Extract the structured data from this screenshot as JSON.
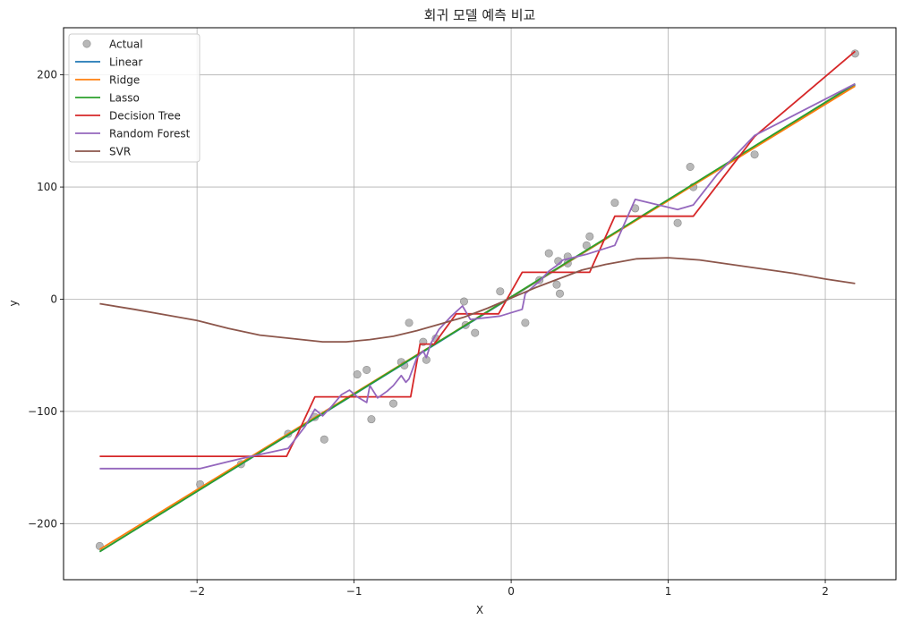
{
  "chart_data": {
    "type": "line",
    "title": "회귀 모델 예측 비교",
    "xlabel": "X",
    "ylabel": "y",
    "xlim": [
      -2.85,
      2.45
    ],
    "ylim": [
      -250,
      242
    ],
    "x_ticks": [
      -2,
      -1,
      0,
      1,
      2
    ],
    "x_tick_labels": [
      "−2",
      "−1",
      "0",
      "1",
      "2"
    ],
    "y_ticks": [
      -200,
      -100,
      0,
      100,
      200
    ],
    "y_tick_labels": [
      "−200",
      "−100",
      "0",
      "100",
      "200"
    ],
    "grid": true,
    "legend_position": "top-left",
    "colors": {
      "actual": "#a0a0a0",
      "linear": "#1f77b4",
      "ridge": "#ff7f0e",
      "lasso": "#2ca02c",
      "decision_tree": "#d62728",
      "random_forest": "#9467bd",
      "svr": "#8c564b"
    },
    "scatter": {
      "name": "Actual",
      "points": [
        [
          -2.62,
          -220
        ],
        [
          -1.98,
          -165
        ],
        [
          -1.72,
          -147
        ],
        [
          -1.42,
          -120
        ],
        [
          -1.25,
          -105
        ],
        [
          -1.19,
          -125
        ],
        [
          -0.98,
          -67
        ],
        [
          -0.92,
          -63
        ],
        [
          -0.89,
          -107
        ],
        [
          -0.75,
          -93
        ],
        [
          -0.7,
          -56
        ],
        [
          -0.68,
          -59
        ],
        [
          -0.65,
          -21
        ],
        [
          -0.56,
          -38
        ],
        [
          -0.54,
          -54
        ],
        [
          -0.48,
          -35
        ],
        [
          -0.3,
          -2
        ],
        [
          -0.29,
          -23
        ],
        [
          -0.23,
          -30
        ],
        [
          -0.07,
          7
        ],
        [
          0.09,
          -21
        ],
        [
          0.18,
          17
        ],
        [
          0.24,
          41
        ],
        [
          0.29,
          13
        ],
        [
          0.3,
          34
        ],
        [
          0.31,
          5
        ],
        [
          0.36,
          32
        ],
        [
          0.36,
          38
        ],
        [
          0.48,
          48
        ],
        [
          0.5,
          56
        ],
        [
          0.66,
          86
        ],
        [
          0.79,
          81
        ],
        [
          1.06,
          68
        ],
        [
          1.14,
          118
        ],
        [
          1.16,
          100
        ],
        [
          1.55,
          129
        ],
        [
          2.19,
          219
        ]
      ]
    },
    "series": [
      {
        "name": "Linear",
        "x": [
          -2.62,
          2.19
        ],
        "y": [
          -225,
          191
        ]
      },
      {
        "name": "Ridge",
        "x": [
          -2.62,
          2.19
        ],
        "y": [
          -223,
          190
        ]
      },
      {
        "name": "Lasso",
        "x": [
          -2.62,
          2.19
        ],
        "y": [
          -225,
          192
        ]
      },
      {
        "name": "Decision Tree",
        "x": [
          -2.62,
          -1.43,
          -1.36,
          -1.25,
          -0.64,
          -0.58,
          -0.49,
          -0.35,
          -0.08,
          0.07,
          0.5,
          0.66,
          1.16,
          1.55,
          2.19
        ],
        "y": [
          -140,
          -140,
          -120,
          -87,
          -87,
          -40,
          -40,
          -13,
          -13,
          24,
          24,
          74,
          74,
          145,
          221
        ]
      },
      {
        "name": "Random Forest",
        "x": [
          -2.62,
          -1.98,
          -1.72,
          -1.42,
          -1.31,
          -1.25,
          -1.2,
          -1.14,
          -1.08,
          -1.03,
          -0.98,
          -0.92,
          -0.9,
          -0.85,
          -0.79,
          -0.75,
          -0.7,
          -0.67,
          -0.65,
          -0.6,
          -0.56,
          -0.54,
          -0.51,
          -0.46,
          -0.38,
          -0.31,
          -0.26,
          -0.07,
          0.07,
          0.09,
          0.18,
          0.24,
          0.29,
          0.33,
          0.48,
          0.66,
          0.79,
          1.06,
          1.16,
          1.31,
          1.55,
          2.19
        ],
        "y": [
          -151,
          -151,
          -142,
          -133,
          -113,
          -98,
          -104,
          -95,
          -85,
          -81,
          -87,
          -92,
          -77,
          -88,
          -82,
          -77,
          -68,
          -74,
          -71,
          -52,
          -46,
          -52,
          -39,
          -27,
          -15,
          -6,
          -18,
          -15,
          -9,
          5,
          16,
          25,
          30,
          35,
          40,
          48,
          89,
          80,
          84,
          111,
          146,
          192
        ]
      },
      {
        "name": "SVR",
        "x": [
          -2.62,
          -2.4,
          -2.2,
          -2.0,
          -1.8,
          -1.6,
          -1.4,
          -1.2,
          -1.05,
          -0.9,
          -0.75,
          -0.6,
          -0.45,
          -0.3,
          -0.15,
          0.0,
          0.15,
          0.3,
          0.45,
          0.6,
          0.8,
          1.0,
          1.2,
          1.4,
          1.6,
          1.8,
          2.0,
          2.19
        ],
        "y": [
          -4,
          -9,
          -14,
          -19,
          -26,
          -32,
          -35,
          -38,
          -38,
          -36,
          -33,
          -28,
          -22,
          -16,
          -8,
          1,
          10,
          18,
          26,
          31,
          36,
          37,
          35,
          31,
          27,
          23,
          18,
          14
        ]
      }
    ]
  }
}
